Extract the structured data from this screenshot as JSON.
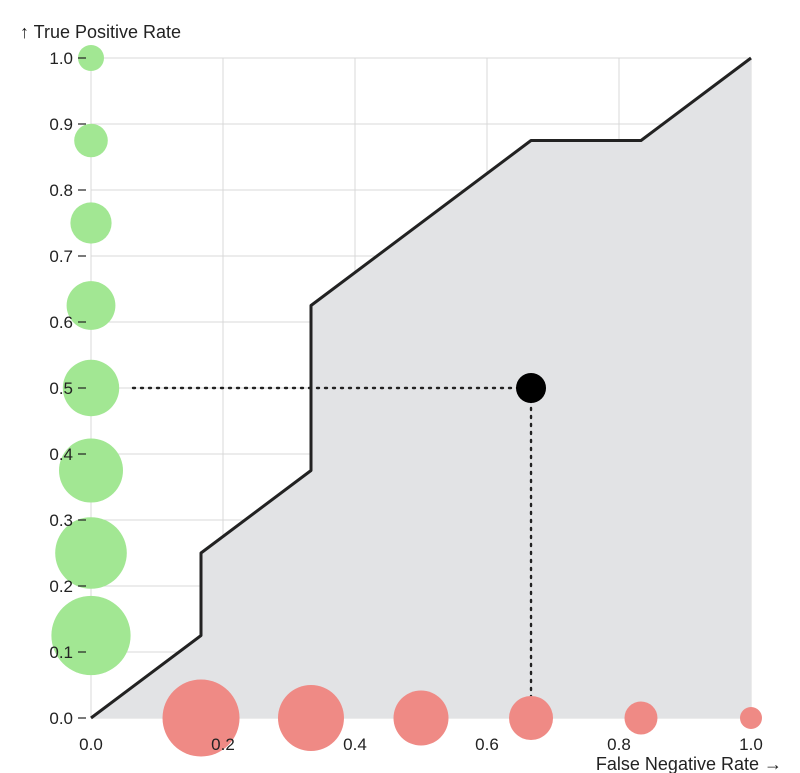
{
  "chart_data": {
    "type": "line",
    "xlabel": "False Negative Rate →",
    "ylabel": "↑ True Positive Rate",
    "xlim": [
      0,
      1
    ],
    "ylim": [
      0,
      1
    ],
    "grid": true,
    "x_ticks": [
      "0.0",
      "0.2",
      "0.4",
      "0.6",
      "0.8",
      "1.0"
    ],
    "y_ticks": [
      "0.0",
      "0.1",
      "0.2",
      "0.3",
      "0.4",
      "0.5",
      "0.6",
      "0.7",
      "0.8",
      "0.9",
      "1.0"
    ],
    "series": [
      {
        "x": [
          0,
          0.1667,
          0.1667,
          0.3333,
          0.3333,
          0.6667,
          0.8333,
          1.0
        ],
        "y": [
          0,
          0.125,
          0.25,
          0.375,
          0.625,
          0.875,
          0.875,
          1.0
        ]
      }
    ],
    "highlight_point": {
      "x": 0.6667,
      "y": 0.5
    },
    "positive_markers": [
      {
        "y": 0.125,
        "relative_size": 8
      },
      {
        "y": 0.25,
        "relative_size": 7
      },
      {
        "y": 0.375,
        "relative_size": 6
      },
      {
        "y": 0.5,
        "relative_size": 5
      },
      {
        "y": 0.625,
        "relative_size": 4
      },
      {
        "y": 0.75,
        "relative_size": 3
      },
      {
        "y": 0.875,
        "relative_size": 2
      },
      {
        "y": 1.0,
        "relative_size": 1
      }
    ],
    "negative_markers": [
      {
        "x": 0.1667,
        "relative_size": 6
      },
      {
        "x": 0.3333,
        "relative_size": 5
      },
      {
        "x": 0.5,
        "relative_size": 4
      },
      {
        "x": 0.6667,
        "relative_size": 3
      },
      {
        "x": 0.8333,
        "relative_size": 2
      },
      {
        "x": 1.0,
        "relative_size": 1
      }
    ],
    "colors": {
      "line": "#222222",
      "area": "#e2e3e5",
      "grid": "#d9d9d9",
      "positive": "#a2e793",
      "negative": "#ef8a85",
      "highlight": "#000000"
    }
  }
}
